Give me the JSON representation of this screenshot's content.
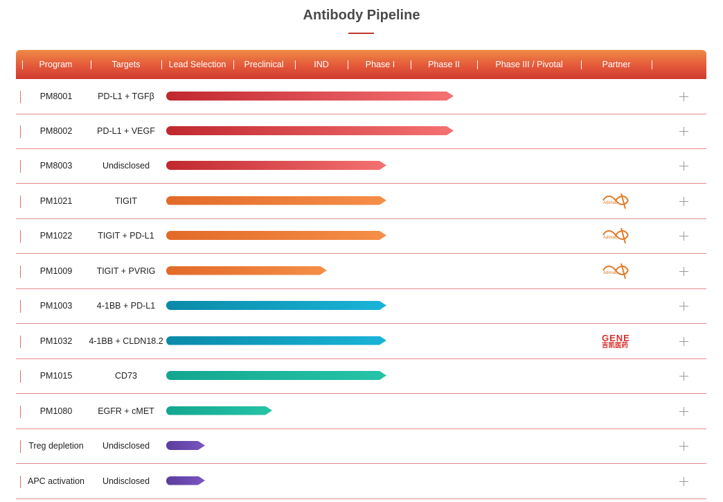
{
  "page": {
    "title": "Antibody Pipeline"
  },
  "header": {
    "columns": [
      "Program",
      "Targets",
      "Lead Selection",
      "Preclinical",
      "IND",
      "Phase I",
      "Phase II",
      "Phase III / Pivotal",
      "Partner"
    ]
  },
  "colors": {
    "red_start": "#c0282f",
    "red_end": "#f57272",
    "orange_start": "#e26a28",
    "orange_end": "#f58f47",
    "blue_start": "#0a8aa8",
    "blue_end": "#1ab4d8",
    "teal_start": "#14a690",
    "teal_end": "#25c4a7",
    "purple_start": "#5a3e9c",
    "purple_end": "#7a55c0"
  },
  "rows": [
    {
      "program": "PM8001",
      "targets": "PD-L1 + TGFβ",
      "stage_reached": "Phase II",
      "color": "red",
      "partner": ""
    },
    {
      "program": "PM8002",
      "targets": "PD-L1 + VEGF",
      "stage_reached": "Phase II",
      "color": "red",
      "partner": ""
    },
    {
      "program": "PM8003",
      "targets": "Undisclosed",
      "stage_reached": "Phase I",
      "color": "red",
      "partner": ""
    },
    {
      "program": "PM1021",
      "targets": "TIGIT",
      "stage_reached": "Phase I",
      "color": "orange",
      "partner": "Adimab"
    },
    {
      "program": "PM1022",
      "targets": "TIGIT + PD-L1",
      "stage_reached": "Phase I",
      "color": "orange",
      "partner": "Adimab"
    },
    {
      "program": "PM1009",
      "targets": "TIGIT + PVRIG",
      "stage_reached": "IND",
      "color": "orange",
      "partner": "Adimab"
    },
    {
      "program": "PM1003",
      "targets": "4-1BB + PD-L1",
      "stage_reached": "Phase I",
      "color": "blue",
      "partner": ""
    },
    {
      "program": "PM1032",
      "targets": "4-1BB + CLDN18.2",
      "stage_reached": "Phase I",
      "color": "blue",
      "partner": "GENE",
      "partner_sub": "吉凯医药"
    },
    {
      "program": "PM1015",
      "targets": "CD73",
      "stage_reached": "Phase I",
      "color": "teal",
      "partner": ""
    },
    {
      "program": "PM1080",
      "targets": "EGFR + cMET",
      "stage_reached": "Preclinical",
      "color": "teal",
      "partner": ""
    },
    {
      "program": "Treg depletion",
      "targets": "Undisclosed",
      "stage_reached": "Lead Selection",
      "color": "purple",
      "partner": ""
    },
    {
      "program": "APC activation",
      "targets": "Undisclosed",
      "stage_reached": "Lead Selection",
      "color": "purple",
      "partner": ""
    }
  ]
}
